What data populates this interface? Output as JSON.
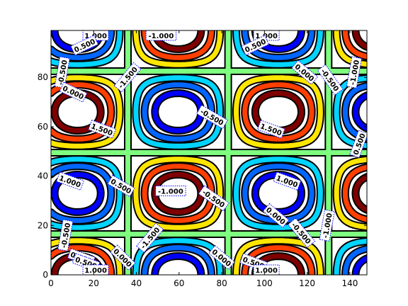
{
  "chart_data": {
    "type": "contour",
    "function": "z = 2 * sin(2*pi*x/width) * sin(2*pi*y/height) shifted",
    "xlim": [
      0,
      148
    ],
    "ylim": [
      0,
      99
    ],
    "x_ticks": [
      "0",
      "20",
      "40",
      "60",
      "80",
      "100",
      "120",
      "140"
    ],
    "x_tick_values": [
      0,
      20,
      40,
      60,
      80,
      100,
      120,
      140
    ],
    "y_ticks": [
      "0",
      "20",
      "40",
      "60",
      "80"
    ],
    "y_tick_values": [
      0,
      20,
      40,
      60,
      80
    ],
    "levels": [
      -2.0,
      -1.5,
      -1.0,
      -0.5,
      0.0,
      0.5,
      1.0,
      1.5,
      2.0
    ],
    "level_colors": [
      "#00007f",
      "#0000ff",
      "#0066ff",
      "#00d4ff",
      "#7fff7f",
      "#ffe600",
      "#ff3f00",
      "#7f0000",
      "#7f0000"
    ],
    "inline_labels": [
      {
        "text": "1.000",
        "x": 28,
        "y": 97,
        "angle": 0
      },
      {
        "text": "0.500",
        "x": 21,
        "y": 93,
        "angle": 25
      },
      {
        "text": "-1.000",
        "x": 69,
        "y": 97,
        "angle": 0
      },
      {
        "text": "-1.500",
        "x": 48,
        "y": 80,
        "angle": 50
      },
      {
        "text": "-0.500",
        "x": 101,
        "y": 64,
        "angle": -30
      },
      {
        "text": "1.000",
        "x": 135,
        "y": 97,
        "angle": 0
      },
      {
        "text": "0.500",
        "x": 128,
        "y": 93,
        "angle": 25
      },
      {
        "text": "0.000",
        "x": 159,
        "y": 82,
        "angle": -40
      },
      {
        "text": "-0.500",
        "x": 175,
        "y": 79,
        "angle": -55
      },
      {
        "text": "-1.000",
        "x": 190,
        "y": 82,
        "angle": 80
      },
      {
        "text": "-0.500",
        "x": 7,
        "y": 82,
        "angle": 80
      },
      {
        "text": "0.000",
        "x": 14,
        "y": 74,
        "angle": -25
      },
      {
        "text": "1.500",
        "x": 32,
        "y": 59,
        "angle": -20
      },
      {
        "text": "1.500",
        "x": 138,
        "y": 59,
        "angle": -20
      },
      {
        "text": "0.500",
        "x": 193,
        "y": 53,
        "angle": 70
      },
      {
        "text": "1.000",
        "x": 12,
        "y": 38,
        "angle": -20
      },
      {
        "text": "0.500",
        "x": 44,
        "y": 36,
        "angle": -30
      },
      {
        "text": "-1.000",
        "x": 75,
        "y": 34,
        "angle": 0
      },
      {
        "text": "-0.500",
        "x": 102,
        "y": 31,
        "angle": -35
      },
      {
        "text": "1.000",
        "x": 148,
        "y": 38,
        "angle": -20
      },
      {
        "text": "-0.500",
        "x": 9,
        "y": 16,
        "angle": 80
      },
      {
        "text": "-1.500",
        "x": 62,
        "y": 15,
        "angle": 50
      },
      {
        "text": "0.000",
        "x": 19,
        "y": 7,
        "angle": -20
      },
      {
        "text": "0.500",
        "x": 22,
        "y": 5,
        "angle": -20
      },
      {
        "text": "1.000",
        "x": 28,
        "y": 2,
        "angle": 0
      },
      {
        "text": "0.000",
        "x": 45,
        "y": 7,
        "angle": -45
      },
      {
        "text": "0.000",
        "x": 107,
        "y": 7,
        "angle": -40
      },
      {
        "text": "0.500",
        "x": 127,
        "y": 5,
        "angle": -20
      },
      {
        "text": "1.000",
        "x": 135,
        "y": 2,
        "angle": 0
      },
      {
        "text": "0.000",
        "x": 141,
        "y": 24,
        "angle": -40
      },
      {
        "text": "-0.500",
        "x": 157,
        "y": 17,
        "angle": -50
      },
      {
        "text": "-1.000",
        "x": 173,
        "y": 20,
        "angle": 80
      }
    ]
  }
}
